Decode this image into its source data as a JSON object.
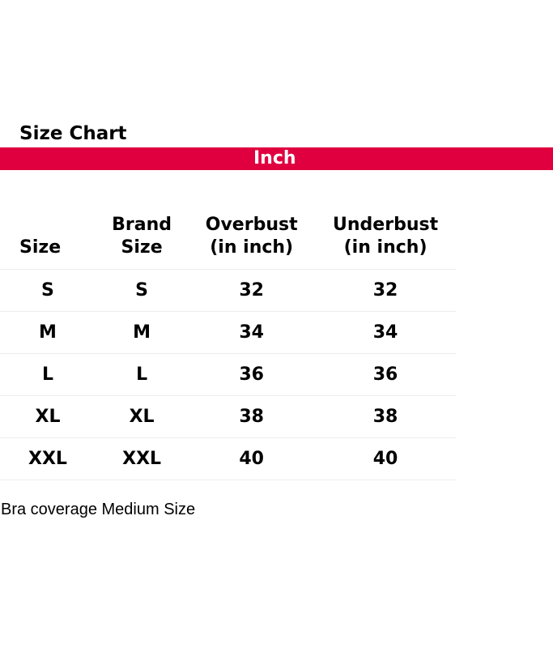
{
  "title": "Size Chart",
  "unit_band": {
    "label": "Inch",
    "color": "#e0003f"
  },
  "table": {
    "headers": [
      "Size",
      "Brand Size",
      "Overbust (in inch)",
      "Underbust (in inch)"
    ],
    "header_lines": [
      [
        "Size"
      ],
      [
        "Brand",
        "Size"
      ],
      [
        "Overbust",
        "(in inch)"
      ],
      [
        "Underbust",
        "(in inch)"
      ]
    ],
    "rows": [
      [
        "S",
        "S",
        "32",
        "32"
      ],
      [
        "M",
        "M",
        "34",
        "34"
      ],
      [
        "L",
        "L",
        "36",
        "36"
      ],
      [
        "XL",
        "XL",
        "38",
        "38"
      ],
      [
        "XXL",
        "XXL",
        "40",
        "40"
      ]
    ]
  },
  "note": "Bra coverage Medium Size"
}
